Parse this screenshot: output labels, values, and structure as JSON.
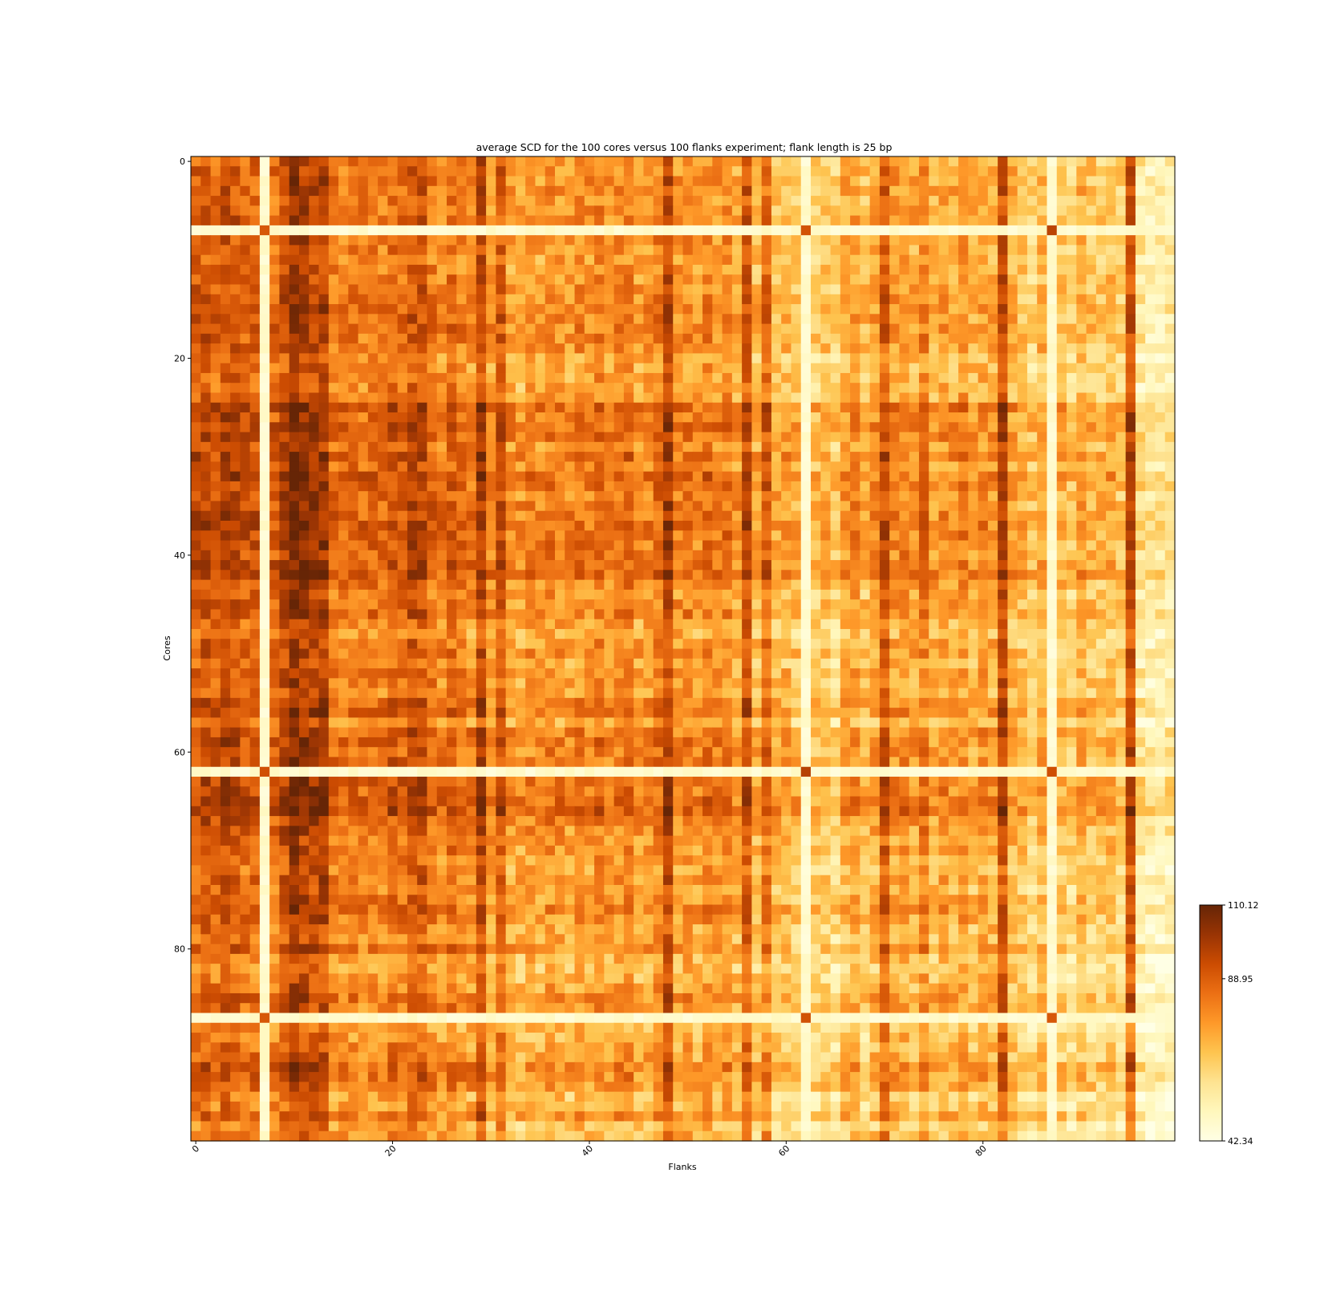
{
  "chart_data": {
    "type": "heatmap",
    "title": "average SCD for the 100 cores versus 100 flanks experiment; flank length is 25 bp",
    "xlabel": "Flanks",
    "ylabel": "Cores",
    "n_rows": 100,
    "n_cols": 100,
    "x_ticks": [
      0,
      20,
      40,
      60,
      80
    ],
    "y_ticks": [
      0,
      20,
      40,
      60,
      80
    ],
    "x_tick_labels": [
      "0",
      "20",
      "40",
      "60",
      "80"
    ],
    "y_tick_labels": [
      "0",
      "20",
      "40",
      "60",
      "80"
    ],
    "colormap": "YlOrBr",
    "colormap_stops": [
      "#ffffe5",
      "#fff7bc",
      "#fee391",
      "#fec44f",
      "#fe9929",
      "#ec7014",
      "#cc4c02",
      "#993404",
      "#662506"
    ],
    "colorbar": {
      "min": 42.34,
      "max": 110.12,
      "ticks": [
        42.34,
        88.95,
        110.12
      ],
      "tick_labels": [
        "42.34",
        "88.95",
        "110.12"
      ]
    },
    "bright_columns": [
      7,
      62,
      87
    ],
    "bright_rows": [
      7,
      62,
      87
    ],
    "column_levels": [
      88.0,
      90.0,
      86.0,
      92.0,
      90.0,
      86.0,
      86.0,
      48.0,
      84.0,
      92.0,
      100.0,
      96.0,
      94.0,
      96.0,
      82.0,
      80.0,
      82.0,
      80.0,
      82.0,
      80.0,
      86.0,
      84.0,
      90.0,
      90.0,
      82.0,
      78.0,
      84.0,
      80.0,
      78.0,
      94.0,
      76.0,
      88.0,
      74.0,
      72.0,
      76.0,
      74.0,
      78.0,
      76.0,
      74.0,
      78.0,
      76.0,
      80.0,
      76.0,
      78.0,
      80.0,
      74.0,
      76.0,
      80.0,
      94.0,
      76.0,
      78.0,
      74.0,
      80.0,
      76.0,
      78.0,
      72.0,
      90.0,
      70.0,
      84.0,
      68.0,
      70.0,
      66.0,
      50.0,
      64.0,
      66.0,
      62.0,
      72.0,
      74.0,
      66.0,
      72.0,
      88.0,
      74.0,
      76.0,
      72.0,
      80.0,
      70.0,
      74.0,
      72.0,
      76.0,
      70.0,
      74.0,
      72.0,
      92.0,
      70.0,
      66.0,
      62.0,
      70.0,
      50.0,
      66.0,
      62.0,
      70.0,
      66.0,
      64.0,
      68.0,
      62.0,
      92.0,
      56.0,
      52.0,
      52.0,
      54.0
    ],
    "row_offsets": [
      0,
      1,
      2,
      1,
      0,
      1,
      2,
      0,
      1,
      0,
      -2,
      -1,
      0,
      1,
      2,
      3,
      3,
      3,
      2,
      1,
      -4,
      -3,
      -2,
      -3,
      -1,
      10,
      5,
      8,
      6,
      2,
      8,
      3,
      9,
      6,
      5,
      6,
      7,
      8,
      7,
      6,
      5,
      7,
      9,
      3,
      0,
      2,
      4,
      -2,
      -5,
      0,
      2,
      -3,
      1,
      0,
      -2,
      4,
      6,
      -4,
      5,
      6,
      3,
      4,
      0,
      6,
      7,
      9,
      11,
      4,
      2,
      0,
      1,
      -2,
      -3,
      1,
      -2,
      0,
      4,
      0,
      -3,
      -4,
      2,
      -6,
      -8,
      -5,
      -3,
      2,
      -1,
      0,
      -8,
      -6,
      -4,
      -2,
      4,
      2,
      0,
      -8,
      -6,
      0,
      -10,
      -6
    ]
  }
}
